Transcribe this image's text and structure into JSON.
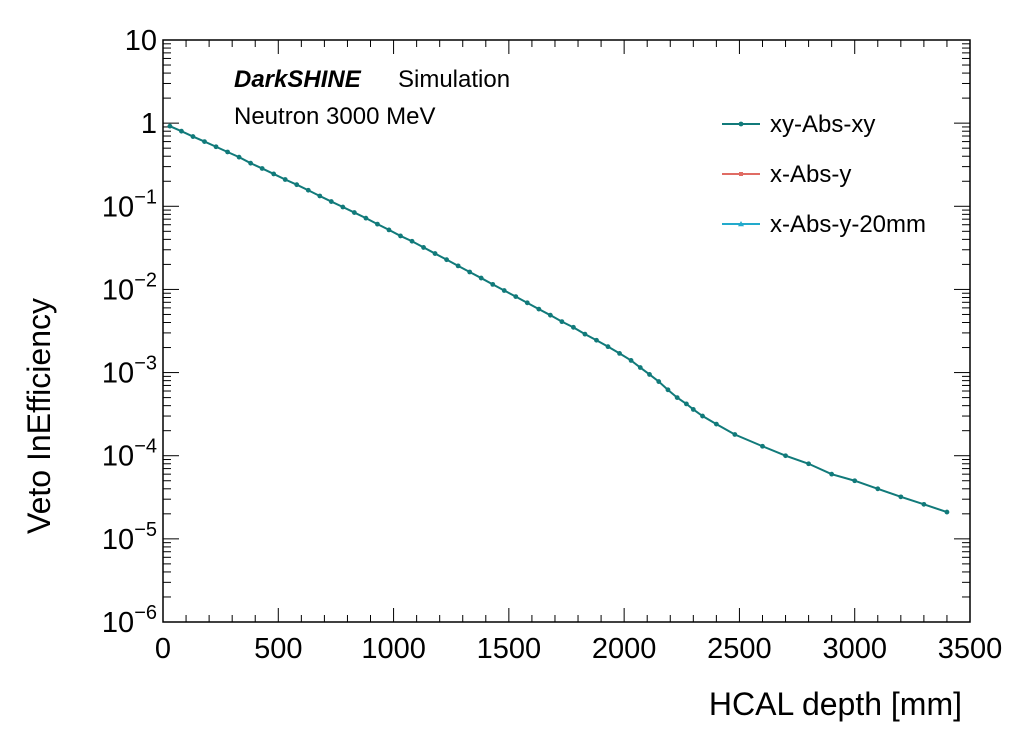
{
  "chart_data": {
    "type": "line",
    "y_scale": "log",
    "xlabel": "HCAL depth [mm]",
    "ylabel": "Veto InEfficiency",
    "xlim": [
      0,
      3500
    ],
    "ylim": [
      1e-06,
      10
    ],
    "x_ticks": [
      "0",
      "500",
      "1000",
      "1500",
      "2000",
      "2500",
      "3000",
      "3500"
    ],
    "x_tick_values": [
      0,
      500,
      1000,
      1500,
      2000,
      2500,
      3000,
      3500
    ],
    "y_ticks": [
      {
        "value": 10,
        "base": "10",
        "exp": ""
      },
      {
        "value": 1,
        "base": "1",
        "exp": ""
      },
      {
        "value": 0.1,
        "base": "10",
        "exp": "−1"
      },
      {
        "value": 0.01,
        "base": "10",
        "exp": "−2"
      },
      {
        "value": 0.001,
        "base": "10",
        "exp": "−3"
      },
      {
        "value": 0.0001,
        "base": "10",
        "exp": "−4"
      },
      {
        "value": 1e-05,
        "base": "10",
        "exp": "−5"
      },
      {
        "value": 1e-06,
        "base": "10",
        "exp": "−6"
      }
    ],
    "annotations": {
      "experiment": "DarkSHINE",
      "label": "Simulation",
      "process": "Neutron 3000 MeV"
    },
    "legend_position": "top-right",
    "series": [
      {
        "name": "xy-Abs-xy",
        "color": "#117a7a",
        "marker": "circle",
        "points": [
          [
            30,
            0.92
          ],
          [
            80,
            0.8
          ],
          [
            130,
            0.69
          ],
          [
            180,
            0.6
          ],
          [
            230,
            0.52
          ],
          [
            280,
            0.45
          ],
          [
            330,
            0.39
          ],
          [
            380,
            0.33
          ],
          [
            430,
            0.285
          ],
          [
            480,
            0.245
          ],
          [
            530,
            0.21
          ],
          [
            580,
            0.182
          ],
          [
            630,
            0.156
          ],
          [
            680,
            0.133
          ],
          [
            730,
            0.114
          ],
          [
            780,
            0.098
          ],
          [
            830,
            0.084
          ],
          [
            880,
            0.072
          ],
          [
            930,
            0.061
          ],
          [
            980,
            0.052
          ],
          [
            1030,
            0.044
          ],
          [
            1080,
            0.038
          ],
          [
            1130,
            0.032
          ],
          [
            1180,
            0.027
          ],
          [
            1230,
            0.0228
          ],
          [
            1280,
            0.0192
          ],
          [
            1330,
            0.0162
          ],
          [
            1380,
            0.0137
          ],
          [
            1430,
            0.0115
          ],
          [
            1480,
            0.0097
          ],
          [
            1530,
            0.0082
          ],
          [
            1580,
            0.0069
          ],
          [
            1630,
            0.0058
          ],
          [
            1680,
            0.0049
          ],
          [
            1730,
            0.0041
          ],
          [
            1780,
            0.0035
          ],
          [
            1830,
            0.0029
          ],
          [
            1880,
            0.00245
          ],
          [
            1930,
            0.00205
          ],
          [
            1980,
            0.0017
          ],
          [
            2030,
            0.0014
          ],
          [
            2070,
            0.00115
          ],
          [
            2110,
            0.00095
          ],
          [
            2150,
            0.00078
          ],
          [
            2190,
            0.00062
          ],
          [
            2230,
            0.0005
          ],
          [
            2270,
            0.00042
          ],
          [
            2300,
            0.00036
          ],
          [
            2340,
            0.0003
          ],
          [
            2400,
            0.00024
          ],
          [
            2480,
            0.00018
          ],
          [
            2600,
            0.00013
          ],
          [
            2700,
            0.0001
          ],
          [
            2800,
            8e-05
          ],
          [
            2900,
            6e-05
          ],
          [
            3000,
            5e-05
          ],
          [
            3100,
            4e-05
          ],
          [
            3200,
            3.2e-05
          ],
          [
            3300,
            2.6e-05
          ],
          [
            3400,
            2.1e-05
          ]
        ]
      },
      {
        "name": "x-Abs-y",
        "color": "#e06c64",
        "marker": "square",
        "points": []
      },
      {
        "name": "x-Abs-y-20mm",
        "color": "#22aacc",
        "marker": "triangle",
        "points": []
      }
    ]
  }
}
